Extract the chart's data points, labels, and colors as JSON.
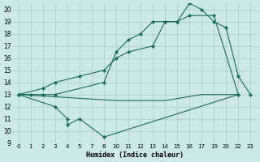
{
  "xlabel": "Humidex (Indice chaleur)",
  "bg_color": "#cce8e8",
  "grid_color": "#aacccc",
  "line_color": "#1a6b5a",
  "tick_labels_x": [
    "0",
    "1",
    "2",
    "3",
    "4",
    "5",
    "7",
    "8",
    "10",
    "11",
    "12",
    "13",
    "14",
    "15",
    "16",
    "17",
    "19",
    "20",
    "22",
    "23"
  ],
  "tick_values_x": [
    0,
    1,
    2,
    3,
    4,
    5,
    7,
    8,
    10,
    11,
    12,
    13,
    14,
    15,
    16,
    17,
    19,
    20,
    22,
    23
  ],
  "yticks": [
    9,
    10,
    11,
    12,
    13,
    14,
    15,
    16,
    17,
    18,
    19,
    20
  ],
  "ylim": [
    9,
    20.5
  ],
  "xlim": [
    -0.5,
    19.5
  ],
  "series": [
    {
      "x_vals": [
        0,
        1,
        2,
        3,
        8,
        10,
        11,
        12,
        13,
        14,
        15,
        16,
        17,
        19,
        20,
        22,
        23
      ],
      "y": [
        13,
        13,
        13,
        13,
        14,
        16.5,
        17.5,
        18,
        19,
        19,
        19,
        20.5,
        20,
        19,
        18.5,
        14.5,
        13
      ],
      "marker": true
    },
    {
      "x_vals": [
        0,
        2,
        3,
        5,
        8,
        10,
        11,
        13,
        14,
        15,
        16,
        19,
        22
      ],
      "y": [
        13,
        13.5,
        14,
        14.5,
        15,
        16,
        16.5,
        17,
        19,
        19,
        19.5,
        19.5,
        13
      ],
      "marker": true
    },
    {
      "x_vals": [
        0,
        3,
        4,
        4,
        5,
        8,
        22
      ],
      "y": [
        13,
        12,
        11,
        10.5,
        11,
        9.5,
        13
      ],
      "marker": true
    },
    {
      "x_vals": [
        0,
        10,
        14,
        17,
        22
      ],
      "y": [
        13,
        12.5,
        12.5,
        13,
        13
      ],
      "marker": false
    }
  ]
}
